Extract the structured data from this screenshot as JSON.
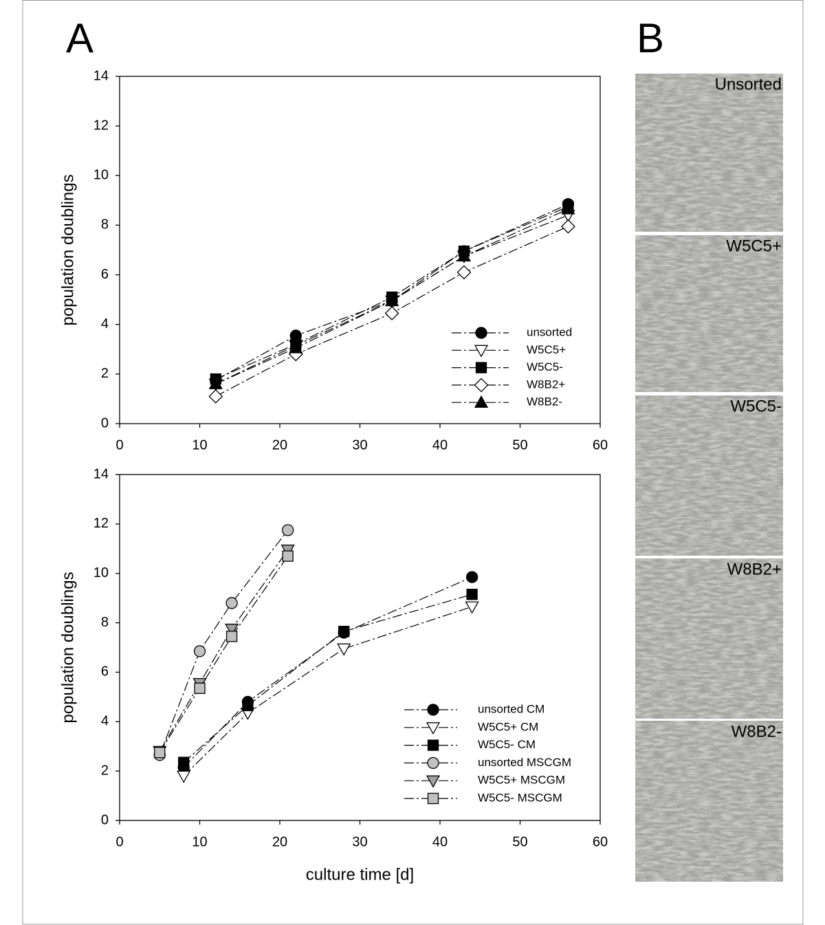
{
  "panel_labels": [
    "A",
    "B"
  ],
  "chart_data": [
    {
      "type": "line",
      "ylabel": "population doublings",
      "x": [
        12,
        22,
        34,
        43,
        56
      ],
      "xlim": [
        0,
        60
      ],
      "xticks": [
        0,
        10,
        20,
        30,
        40,
        50,
        60
      ],
      "ylim": [
        0,
        14
      ],
      "yticks": [
        0,
        2,
        4,
        6,
        8,
        10,
        12,
        14
      ],
      "line_style": "dash-dot",
      "legend": "lower right",
      "series": [
        {
          "name": "unsorted",
          "marker": "circle",
          "color": "#000000",
          "values": [
            1.75,
            3.55,
            4.95,
            6.95,
            8.85
          ]
        },
        {
          "name": "W5C5+",
          "marker": "triangle-down",
          "color": "#ffffff",
          "values": [
            1.6,
            3.15,
            4.95,
            6.75,
            8.4
          ]
        },
        {
          "name": "W5C5-",
          "marker": "square",
          "color": "#000000",
          "values": [
            1.8,
            3.2,
            5.1,
            6.95,
            8.75
          ]
        },
        {
          "name": "W8B2+",
          "marker": "diamond",
          "color": "#ffffff",
          "values": [
            1.1,
            2.8,
            4.45,
            6.1,
            7.95
          ]
        },
        {
          "name": "W8B2-",
          "marker": "triangle-up",
          "color": "#000000",
          "values": [
            1.6,
            3.05,
            4.95,
            6.75,
            8.65
          ]
        }
      ]
    },
    {
      "type": "line",
      "ylabel": "population doublings",
      "xlabel": "culture time [d]",
      "xlim": [
        0,
        60
      ],
      "xticks": [
        0,
        10,
        20,
        30,
        40,
        50,
        60
      ],
      "ylim": [
        0,
        14
      ],
      "yticks": [
        0,
        2,
        4,
        6,
        8,
        10,
        12,
        14
      ],
      "line_style": "dash-dot",
      "legend": "lower right",
      "series": [
        {
          "name": "unsorted CM",
          "marker": "circle",
          "color": "#000000",
          "x": [
            8,
            16,
            28,
            44
          ],
          "values": [
            2.15,
            4.8,
            7.6,
            9.85
          ]
        },
        {
          "name": "W5C5+ CM",
          "marker": "triangle-down",
          "color": "#ffffff",
          "x": [
            8,
            16,
            28,
            44
          ],
          "values": [
            1.8,
            4.35,
            6.95,
            8.65
          ]
        },
        {
          "name": "W5C5- CM",
          "marker": "square",
          "color": "#000000",
          "x": [
            8,
            16,
            28,
            44
          ],
          "values": [
            2.35,
            4.65,
            7.65,
            9.15
          ]
        },
        {
          "name": "unsorted MSCGM",
          "marker": "circle",
          "color": "#c0c0c0",
          "x": [
            5,
            10,
            14,
            21
          ],
          "values": [
            2.65,
            6.85,
            8.8,
            11.75
          ]
        },
        {
          "name": "W5C5+ MSCGM",
          "marker": "triangle-down",
          "color": "#a0a0a0",
          "x": [
            5,
            10,
            14,
            21
          ],
          "values": [
            2.8,
            5.55,
            7.75,
            10.95
          ]
        },
        {
          "name": "W5C5- MSCGM",
          "marker": "square",
          "color": "#c0c0c0",
          "x": [
            5,
            10,
            14,
            21
          ],
          "values": [
            2.75,
            5.35,
            7.45,
            10.7
          ]
        }
      ]
    }
  ],
  "image_panels": [
    {
      "label": "Unsorted"
    },
    {
      "label": "W5C5+"
    },
    {
      "label": "W5C5-"
    },
    {
      "label": "W8B2+"
    },
    {
      "label": "W8B2-"
    }
  ]
}
